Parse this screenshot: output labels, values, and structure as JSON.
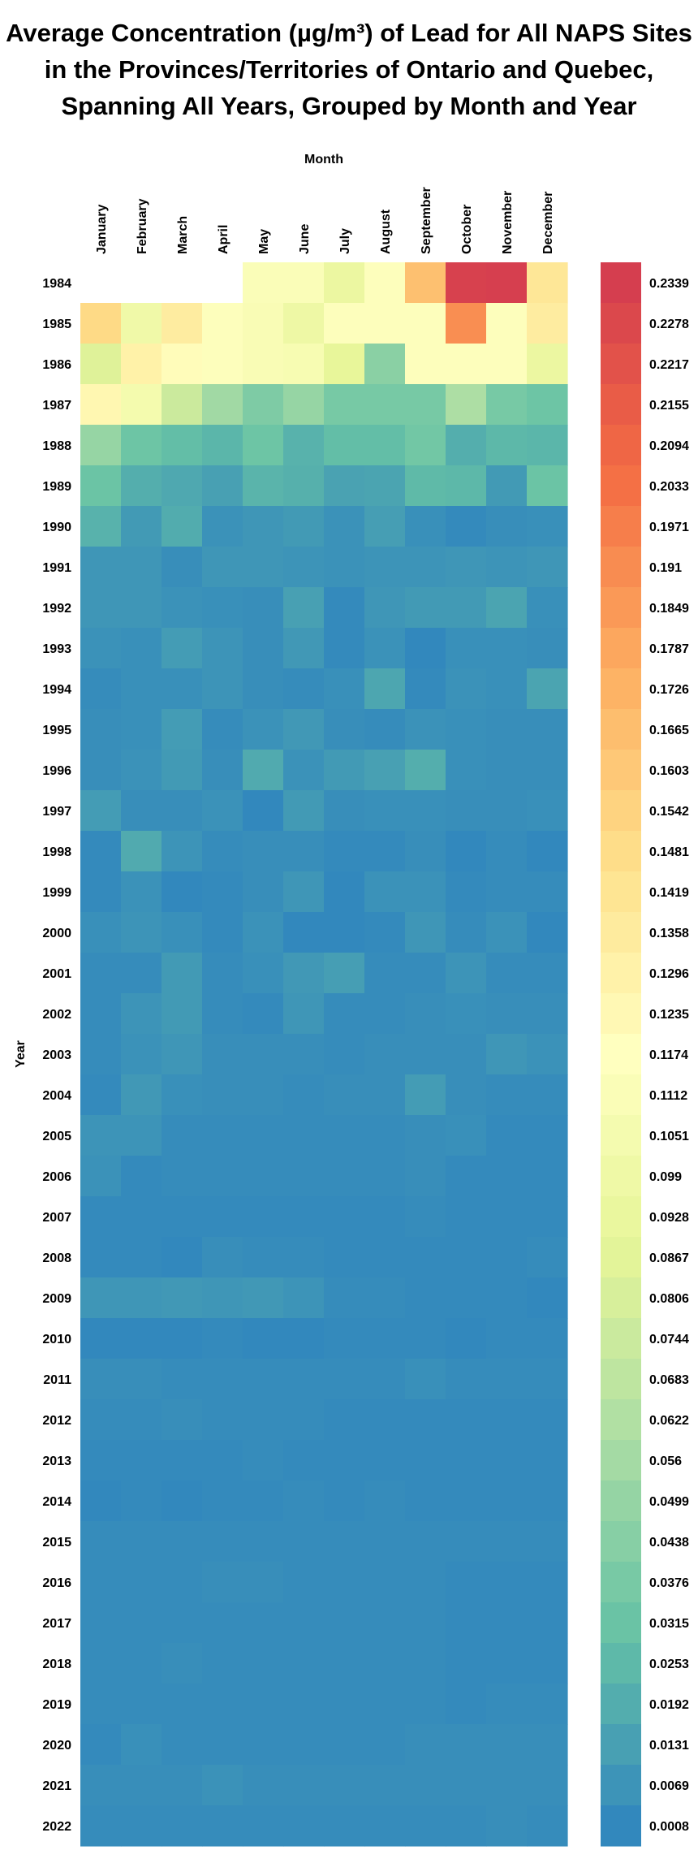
{
  "chart_data": {
    "type": "heatmap",
    "title_lines": [
      "Average Concentration (µg/m³) of Lead for All NAPS Sites",
      "in the Provinces/Territories of Ontario and Quebec,",
      "Spanning All Years, Grouped by Month and Year"
    ],
    "xlabel": "Month",
    "ylabel": "Year",
    "x_categories": [
      "January",
      "February",
      "March",
      "April",
      "May",
      "June",
      "July",
      "August",
      "September",
      "October",
      "November",
      "December"
    ],
    "y_categories": [
      "1984",
      "1985",
      "1986",
      "1987",
      "1988",
      "1989",
      "1990",
      "1991",
      "1992",
      "1993",
      "1994",
      "1995",
      "1996",
      "1997",
      "1998",
      "1999",
      "2000",
      "2001",
      "2002",
      "2003",
      "2004",
      "2005",
      "2006",
      "2007",
      "2008",
      "2009",
      "2010",
      "2011",
      "2012",
      "2013",
      "2014",
      "2015",
      "2016",
      "2017",
      "2018",
      "2019",
      "2020",
      "2021",
      "2022"
    ],
    "values": [
      [
        null,
        null,
        null,
        null,
        0.112,
        0.112,
        0.095,
        0.115,
        0.165,
        0.232,
        0.233,
        0.14
      ],
      [
        0.15,
        0.1,
        0.135,
        0.115,
        0.11,
        0.098,
        0.115,
        0.115,
        0.115,
        0.19,
        0.115,
        0.135
      ],
      [
        0.085,
        0.13,
        0.12,
        0.115,
        0.11,
        0.108,
        0.09,
        0.045,
        0.115,
        0.115,
        0.115,
        0.095
      ],
      [
        0.125,
        0.105,
        0.075,
        0.055,
        0.04,
        0.05,
        0.037,
        0.037,
        0.037,
        0.06,
        0.037,
        0.033
      ],
      [
        0.05,
        0.033,
        0.028,
        0.024,
        0.033,
        0.022,
        0.028,
        0.028,
        0.035,
        0.02,
        0.025,
        0.024
      ],
      [
        0.032,
        0.02,
        0.017,
        0.013,
        0.023,
        0.021,
        0.014,
        0.015,
        0.026,
        0.025,
        0.01,
        0.032
      ],
      [
        0.022,
        0.01,
        0.019,
        0.006,
        0.008,
        0.01,
        0.006,
        0.012,
        0.005,
        0.002,
        0.004,
        0.005
      ],
      [
        0.008,
        0.008,
        0.004,
        0.008,
        0.008,
        0.007,
        0.006,
        0.007,
        0.007,
        0.008,
        0.007,
        0.008
      ],
      [
        0.008,
        0.008,
        0.006,
        0.005,
        0.004,
        0.013,
        0.002,
        0.008,
        0.01,
        0.01,
        0.015,
        0.005
      ],
      [
        0.006,
        0.005,
        0.011,
        0.007,
        0.004,
        0.009,
        0.002,
        0.006,
        0.001,
        0.005,
        0.005,
        0.004
      ],
      [
        0.003,
        0.005,
        0.005,
        0.007,
        0.004,
        0.003,
        0.005,
        0.016,
        0.002,
        0.006,
        0.005,
        0.015
      ],
      [
        0.004,
        0.005,
        0.011,
        0.003,
        0.006,
        0.009,
        0.004,
        0.003,
        0.006,
        0.005,
        0.004,
        0.004
      ],
      [
        0.004,
        0.006,
        0.01,
        0.004,
        0.018,
        0.006,
        0.01,
        0.013,
        0.02,
        0.005,
        0.004,
        0.004
      ],
      [
        0.011,
        0.004,
        0.004,
        0.006,
        0.001,
        0.01,
        0.004,
        0.005,
        0.005,
        0.004,
        0.004,
        0.005
      ],
      [
        0.002,
        0.018,
        0.007,
        0.003,
        0.004,
        0.004,
        0.002,
        0.002,
        0.004,
        0.001,
        0.003,
        0.001
      ],
      [
        0.002,
        0.006,
        0.001,
        0.002,
        0.004,
        0.008,
        0.001,
        0.006,
        0.006,
        0.002,
        0.003,
        0.003
      ],
      [
        0.005,
        0.007,
        0.005,
        0.002,
        0.006,
        0.001,
        0.001,
        0.002,
        0.008,
        0.003,
        0.006,
        0.001
      ],
      [
        0.003,
        0.003,
        0.01,
        0.003,
        0.005,
        0.009,
        0.012,
        0.003,
        0.003,
        0.007,
        0.003,
        0.003
      ],
      [
        0.003,
        0.007,
        0.01,
        0.003,
        0.002,
        0.008,
        0.003,
        0.003,
        0.004,
        0.005,
        0.004,
        0.004
      ],
      [
        0.003,
        0.006,
        0.008,
        0.004,
        0.004,
        0.004,
        0.003,
        0.004,
        0.004,
        0.004,
        0.008,
        0.006
      ],
      [
        0.002,
        0.009,
        0.005,
        0.004,
        0.004,
        0.003,
        0.004,
        0.004,
        0.011,
        0.004,
        0.003,
        0.003
      ],
      [
        0.007,
        0.007,
        0.003,
        0.003,
        0.003,
        0.003,
        0.003,
        0.003,
        0.004,
        0.005,
        0.002,
        0.002
      ],
      [
        0.006,
        0.002,
        0.003,
        0.003,
        0.003,
        0.003,
        0.003,
        0.003,
        0.004,
        0.002,
        0.002,
        0.002
      ],
      [
        0.002,
        0.002,
        0.002,
        0.002,
        0.002,
        0.002,
        0.002,
        0.002,
        0.003,
        0.002,
        0.002,
        0.002
      ],
      [
        0.002,
        0.002,
        0.001,
        0.004,
        0.003,
        0.003,
        0.002,
        0.002,
        0.002,
        0.002,
        0.002,
        0.003
      ],
      [
        0.008,
        0.008,
        0.009,
        0.008,
        0.009,
        0.007,
        0.003,
        0.003,
        0.002,
        0.002,
        0.002,
        0.001
      ],
      [
        0.001,
        0.001,
        0.001,
        0.002,
        0.001,
        0.001,
        0.002,
        0.002,
        0.002,
        0.001,
        0.002,
        0.002
      ],
      [
        0.004,
        0.004,
        0.003,
        0.003,
        0.003,
        0.003,
        0.003,
        0.003,
        0.005,
        0.003,
        0.003,
        0.003
      ],
      [
        0.003,
        0.003,
        0.004,
        0.003,
        0.003,
        0.003,
        0.002,
        0.002,
        0.002,
        0.002,
        0.002,
        0.002
      ],
      [
        0.002,
        0.002,
        0.002,
        0.002,
        0.003,
        0.002,
        0.002,
        0.002,
        0.002,
        0.002,
        0.002,
        0.002
      ],
      [
        0.001,
        0.002,
        0.001,
        0.002,
        0.002,
        0.003,
        0.002,
        0.003,
        0.002,
        0.002,
        0.002,
        0.002
      ],
      [
        0.003,
        0.003,
        0.003,
        0.003,
        0.003,
        0.003,
        0.003,
        0.003,
        0.003,
        0.003,
        0.003,
        0.003
      ],
      [
        0.003,
        0.003,
        0.003,
        0.004,
        0.004,
        0.003,
        0.003,
        0.003,
        0.003,
        0.002,
        0.002,
        0.002
      ],
      [
        0.003,
        0.003,
        0.003,
        0.003,
        0.003,
        0.003,
        0.003,
        0.003,
        0.003,
        0.002,
        0.002,
        0.002
      ],
      [
        0.003,
        0.003,
        0.004,
        0.003,
        0.003,
        0.003,
        0.003,
        0.003,
        0.003,
        0.002,
        0.002,
        0.002
      ],
      [
        0.003,
        0.003,
        0.003,
        0.003,
        0.003,
        0.003,
        0.003,
        0.003,
        0.003,
        0.002,
        0.003,
        0.003
      ],
      [
        0.002,
        0.005,
        0.003,
        0.003,
        0.003,
        0.003,
        0.003,
        0.003,
        0.004,
        0.004,
        0.004,
        0.004
      ],
      [
        0.004,
        0.004,
        0.004,
        0.006,
        0.004,
        0.004,
        0.004,
        0.004,
        0.004,
        0.004,
        0.004,
        0.004
      ],
      [
        0.003,
        0.003,
        0.003,
        0.003,
        0.003,
        0.003,
        0.003,
        0.003,
        0.003,
        0.003,
        0.004,
        0.003
      ]
    ],
    "colorbar": {
      "min": 0.0008,
      "max": 0.2339,
      "tick_labels": [
        "0.2339",
        "0.2278",
        "0.2217",
        "0.2155",
        "0.2094",
        "0.2033",
        "0.1971",
        "0.191",
        "0.1849",
        "0.1787",
        "0.1726",
        "0.1665",
        "0.1603",
        "0.1542",
        "0.1481",
        "0.1419",
        "0.1358",
        "0.1296",
        "0.1235",
        "0.1174",
        "0.1112",
        "0.1051",
        "0.099",
        "0.0928",
        "0.0867",
        "0.0806",
        "0.0744",
        "0.0683",
        "0.0622",
        "0.056",
        "0.0499",
        "0.0438",
        "0.0376",
        "0.0315",
        "0.0253",
        "0.0192",
        "0.0131",
        "0.0069",
        "0.0008"
      ],
      "palette": [
        "#d53e4f",
        "#f46d43",
        "#fdae61",
        "#fee08b",
        "#ffffbf",
        "#e6f598",
        "#abdda4",
        "#66c2a5",
        "#3288bd"
      ],
      "placement": "right"
    }
  }
}
